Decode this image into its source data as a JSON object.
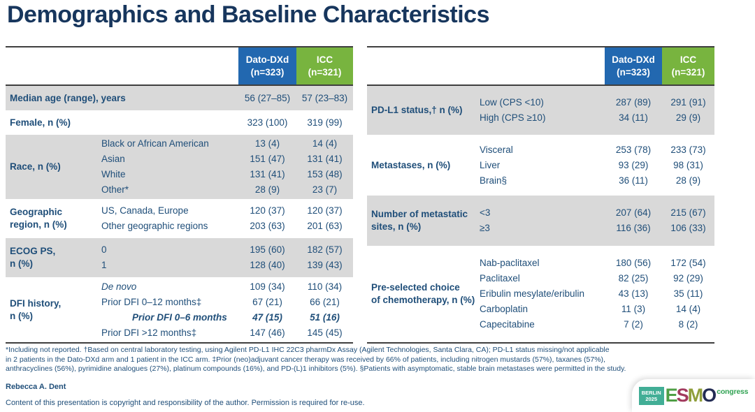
{
  "title": "Demographics and Baseline Characteristics",
  "header": {
    "arm1_name": "Dato-DXd",
    "arm1_n": "(n=323)",
    "arm2_name": "ICC",
    "arm2_n": "(n=321)"
  },
  "colors": {
    "arm1_blue": "#2268b0",
    "arm2_green": "#78b43f",
    "row_gray": "#d9d9d9",
    "text_navy": "#1f4e79",
    "title_navy": "#17365d"
  },
  "tables": {
    "left": {
      "rows": [
        {
          "label": "Median age (range), years",
          "sub": [
            {
              "cat": "",
              "v1": "56 (27–85)",
              "v2": "57 (23–83)"
            }
          ]
        },
        {
          "label": "Female, n (%)",
          "sub": [
            {
              "cat": "",
              "v1": "323 (100)",
              "v2": "319 (99)"
            }
          ]
        },
        {
          "label": "Race, n (%)",
          "sub": [
            {
              "cat": "Black or African American",
              "v1": "13 (4)",
              "v2": "14 (4)"
            },
            {
              "cat": "Asian",
              "v1": "151 (47)",
              "v2": "131 (41)"
            },
            {
              "cat": "White",
              "v1": "131 (41)",
              "v2": "153 (48)"
            },
            {
              "cat": "Other*",
              "v1": "28 (9)",
              "v2": "23 (7)"
            }
          ]
        },
        {
          "label": "Geographic\nregion, n (%)",
          "sub": [
            {
              "cat": "US, Canada, Europe",
              "v1": "120 (37)",
              "v2": "120 (37)"
            },
            {
              "cat": "Other geographic regions",
              "v1": "203 (63)",
              "v2": "201 (63)"
            }
          ]
        },
        {
          "label": "ECOG PS,\nn (%)",
          "sub": [
            {
              "cat": "0",
              "v1": "195 (60)",
              "v2": "182 (57)"
            },
            {
              "cat": "1",
              "v1": "128 (40)",
              "v2": "139 (43)"
            }
          ]
        },
        {
          "label": "DFI history,\nn (%)",
          "sub": [
            {
              "cat": "De novo",
              "v1": "109 (34)",
              "v2": "110 (34)"
            },
            {
              "cat": "Prior DFI 0–12 months‡",
              "v1": "67 (21)",
              "v2": "66 (21)"
            },
            {
              "cat": "Prior DFI 0–6 months",
              "v1": "47 (15)",
              "v2": "51 (16)"
            },
            {
              "cat": "Prior DFI >12 months‡",
              "v1": "147 (46)",
              "v2": "145 (45)"
            }
          ]
        }
      ]
    },
    "right": {
      "rows": [
        {
          "label": "PD-L1 status,† n (%)",
          "sub": [
            {
              "cat": "Low (CPS <10)",
              "v1": "287 (89)",
              "v2": "291 (91)"
            },
            {
              "cat": "High (CPS ≥10)",
              "v1": "34 (11)",
              "v2": "29 (9)"
            }
          ]
        },
        {
          "label": "Metastases, n (%)",
          "sub": [
            {
              "cat": "Visceral",
              "v1": "253 (78)",
              "v2": "233 (73)"
            },
            {
              "cat": "Liver",
              "v1": "93 (29)",
              "v2": "98 (31)"
            },
            {
              "cat": "Brain§",
              "v1": "36 (11)",
              "v2": "28 (9)"
            }
          ]
        },
        {
          "label": "Number of metastatic\nsites, n (%)",
          "sub": [
            {
              "cat": "<3",
              "v1": "207 (64)",
              "v2": "215 (67)"
            },
            {
              "cat": "≥3",
              "v1": "116 (36)",
              "v2": "106 (33)"
            }
          ]
        },
        {
          "label": "Pre-selected choice\nof chemotherapy, n (%)",
          "sub": [
            {
              "cat": "Nab-paclitaxel",
              "v1": "180 (56)",
              "v2": "172 (54)"
            },
            {
              "cat": "Paclitaxel",
              "v1": "82 (25)",
              "v2": "92 (29)"
            },
            {
              "cat": "Eribulin mesylate/eribulin",
              "v1": "43 (13)",
              "v2": "35 (11)"
            },
            {
              "cat": "Carboplatin",
              "v1": "11 (3)",
              "v2": "14 (4)"
            },
            {
              "cat": "Capecitabine",
              "v1": "7 (2)",
              "v2": "8 (2)"
            }
          ]
        }
      ]
    }
  },
  "footnotes": [
    "*Including not reported. †Based on central laboratory testing, using Agilent PD-L1 IHC 22C3 pharmDx Assay (Agilent Technologies, Santa Clara, CA); PD-L1 status missing/not applicable",
    "in 2 patients in the Dato-DXd arm and 1 patient in the ICC arm. ‡Prior (neo)adjuvant cancer therapy was received by 66% of patients, including nitrogen mustards (57%), taxanes (57%),",
    "anthracyclines (56%), pyrimidine analogues (27%), platinum compounds (16%), and PD-(L)1 inhibitors (5%). §Patients with asymptomatic, stable brain metastases were permitted in the study."
  ],
  "author": "Rebecca A. Dent",
  "copyright": "Content of this presentation is copyright and responsibility of the author. Permission is required for re-use.",
  "logo": {
    "city": "BERLIN",
    "year": "2025",
    "e": "E",
    "s": "S",
    "m": "M",
    "o": "O",
    "suffix": "congress"
  }
}
